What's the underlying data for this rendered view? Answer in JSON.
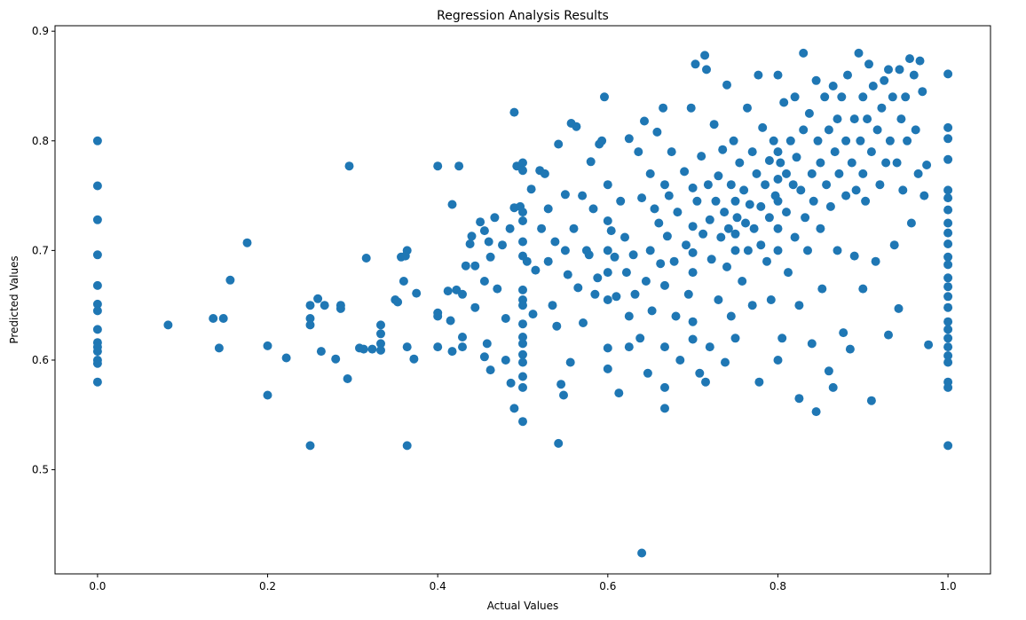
{
  "chart_data": {
    "type": "scatter",
    "title": "Regression Analysis Results",
    "xlabel": "Actual Values",
    "ylabel": "Predicted Values",
    "xlim": [
      -0.05,
      1.05
    ],
    "ylim": [
      0.405,
      0.905
    ],
    "x_ticks": [
      0.0,
      0.2,
      0.4,
      0.6,
      0.8,
      1.0
    ],
    "x_tick_labels": [
      "0.0",
      "0.2",
      "0.4",
      "0.6",
      "0.8",
      "1.0"
    ],
    "y_ticks": [
      0.5,
      0.6,
      0.7,
      0.8,
      0.9
    ],
    "y_tick_labels": [
      "0.5",
      "0.6",
      "0.7",
      "0.8",
      "0.9"
    ],
    "grid": false,
    "marker_color": "#1f77b4",
    "points": [
      [
        0.0,
        0.8
      ],
      [
        0.0,
        0.759
      ],
      [
        0.0,
        0.728
      ],
      [
        0.0,
        0.696
      ],
      [
        0.0,
        0.668
      ],
      [
        0.0,
        0.651
      ],
      [
        0.0,
        0.645
      ],
      [
        0.0,
        0.628
      ],
      [
        0.0,
        0.616
      ],
      [
        0.0,
        0.612
      ],
      [
        0.0,
        0.608
      ],
      [
        0.0,
        0.6
      ],
      [
        0.0,
        0.597
      ],
      [
        0.0,
        0.58
      ],
      [
        0.083,
        0.632
      ],
      [
        0.136,
        0.638
      ],
      [
        0.143,
        0.611
      ],
      [
        0.148,
        0.638
      ],
      [
        0.156,
        0.673
      ],
      [
        0.176,
        0.707
      ],
      [
        0.2,
        0.613
      ],
      [
        0.2,
        0.568
      ],
      [
        0.222,
        0.602
      ],
      [
        0.25,
        0.65
      ],
      [
        0.25,
        0.638
      ],
      [
        0.25,
        0.632
      ],
      [
        0.25,
        0.522
      ],
      [
        0.259,
        0.656
      ],
      [
        0.263,
        0.608
      ],
      [
        0.267,
        0.65
      ],
      [
        0.28,
        0.601
      ],
      [
        0.286,
        0.65
      ],
      [
        0.286,
        0.647
      ],
      [
        0.294,
        0.583
      ],
      [
        0.296,
        0.777
      ],
      [
        0.308,
        0.611
      ],
      [
        0.313,
        0.61
      ],
      [
        0.316,
        0.693
      ],
      [
        0.323,
        0.61
      ],
      [
        0.333,
        0.632
      ],
      [
        0.333,
        0.624
      ],
      [
        0.333,
        0.615
      ],
      [
        0.333,
        0.609
      ],
      [
        0.35,
        0.655
      ],
      [
        0.353,
        0.653
      ],
      [
        0.357,
        0.694
      ],
      [
        0.36,
        0.672
      ],
      [
        0.362,
        0.695
      ],
      [
        0.364,
        0.7
      ],
      [
        0.364,
        0.612
      ],
      [
        0.364,
        0.522
      ],
      [
        0.372,
        0.601
      ],
      [
        0.375,
        0.661
      ],
      [
        0.4,
        0.777
      ],
      [
        0.4,
        0.643
      ],
      [
        0.4,
        0.64
      ],
      [
        0.4,
        0.612
      ],
      [
        0.412,
        0.663
      ],
      [
        0.415,
        0.636
      ],
      [
        0.417,
        0.742
      ],
      [
        0.417,
        0.608
      ],
      [
        0.422,
        0.664
      ],
      [
        0.425,
        0.777
      ],
      [
        0.429,
        0.66
      ],
      [
        0.429,
        0.621
      ],
      [
        0.429,
        0.612
      ],
      [
        0.433,
        0.686
      ],
      [
        0.438,
        0.706
      ],
      [
        0.44,
        0.713
      ],
      [
        0.444,
        0.686
      ],
      [
        0.444,
        0.648
      ],
      [
        0.45,
        0.726
      ],
      [
        0.455,
        0.718
      ],
      [
        0.455,
        0.672
      ],
      [
        0.455,
        0.603
      ],
      [
        0.458,
        0.615
      ],
      [
        0.46,
        0.708
      ],
      [
        0.462,
        0.694
      ],
      [
        0.462,
        0.591
      ],
      [
        0.467,
        0.73
      ],
      [
        0.47,
        0.665
      ],
      [
        0.476,
        0.705
      ],
      [
        0.48,
        0.638
      ],
      [
        0.48,
        0.6
      ],
      [
        0.485,
        0.72
      ],
      [
        0.486,
        0.579
      ],
      [
        0.49,
        0.739
      ],
      [
        0.49,
        0.826
      ],
      [
        0.49,
        0.556
      ],
      [
        0.493,
        0.777
      ],
      [
        0.497,
        0.74
      ],
      [
        0.5,
        0.78
      ],
      [
        0.5,
        0.773
      ],
      [
        0.5,
        0.735
      ],
      [
        0.5,
        0.727
      ],
      [
        0.5,
        0.708
      ],
      [
        0.5,
        0.695
      ],
      [
        0.5,
        0.664
      ],
      [
        0.5,
        0.655
      ],
      [
        0.5,
        0.65
      ],
      [
        0.5,
        0.633
      ],
      [
        0.5,
        0.621
      ],
      [
        0.5,
        0.615
      ],
      [
        0.5,
        0.605
      ],
      [
        0.5,
        0.598
      ],
      [
        0.5,
        0.585
      ],
      [
        0.5,
        0.575
      ],
      [
        0.5,
        0.544
      ],
      [
        0.505,
        0.69
      ],
      [
        0.51,
        0.756
      ],
      [
        0.512,
        0.642
      ],
      [
        0.515,
        0.682
      ],
      [
        0.52,
        0.773
      ],
      [
        0.522,
        0.72
      ],
      [
        0.526,
        0.77
      ],
      [
        0.53,
        0.69
      ],
      [
        0.53,
        0.738
      ],
      [
        0.535,
        0.65
      ],
      [
        0.538,
        0.708
      ],
      [
        0.54,
        0.631
      ],
      [
        0.542,
        0.797
      ],
      [
        0.542,
        0.524
      ],
      [
        0.545,
        0.578
      ],
      [
        0.548,
        0.568
      ],
      [
        0.55,
        0.751
      ],
      [
        0.55,
        0.7
      ],
      [
        0.553,
        0.678
      ],
      [
        0.556,
        0.598
      ],
      [
        0.557,
        0.816
      ],
      [
        0.56,
        0.72
      ],
      [
        0.563,
        0.813
      ],
      [
        0.565,
        0.666
      ],
      [
        0.57,
        0.75
      ],
      [
        0.571,
        0.634
      ],
      [
        0.575,
        0.7
      ],
      [
        0.578,
        0.696
      ],
      [
        0.58,
        0.781
      ],
      [
        0.583,
        0.738
      ],
      [
        0.585,
        0.66
      ],
      [
        0.588,
        0.675
      ],
      [
        0.59,
        0.797
      ],
      [
        0.593,
        0.8
      ],
      [
        0.596,
        0.84
      ],
      [
        0.6,
        0.76
      ],
      [
        0.6,
        0.727
      ],
      [
        0.6,
        0.7
      ],
      [
        0.6,
        0.68
      ],
      [
        0.6,
        0.655
      ],
      [
        0.6,
        0.611
      ],
      [
        0.6,
        0.592
      ],
      [
        0.604,
        0.718
      ],
      [
        0.608,
        0.694
      ],
      [
        0.61,
        0.658
      ],
      [
        0.613,
        0.57
      ],
      [
        0.615,
        0.745
      ],
      [
        0.62,
        0.712
      ],
      [
        0.622,
        0.68
      ],
      [
        0.625,
        0.802
      ],
      [
        0.625,
        0.64
      ],
      [
        0.625,
        0.612
      ],
      [
        0.63,
        0.696
      ],
      [
        0.632,
        0.66
      ],
      [
        0.636,
        0.79
      ],
      [
        0.638,
        0.62
      ],
      [
        0.64,
        0.748
      ],
      [
        0.64,
        0.424
      ],
      [
        0.643,
        0.818
      ],
      [
        0.645,
        0.672
      ],
      [
        0.647,
        0.588
      ],
      [
        0.65,
        0.77
      ],
      [
        0.65,
        0.7
      ],
      [
        0.652,
        0.645
      ],
      [
        0.655,
        0.738
      ],
      [
        0.658,
        0.808
      ],
      [
        0.66,
        0.725
      ],
      [
        0.662,
        0.688
      ],
      [
        0.665,
        0.83
      ],
      [
        0.667,
        0.76
      ],
      [
        0.667,
        0.668
      ],
      [
        0.667,
        0.612
      ],
      [
        0.667,
        0.575
      ],
      [
        0.667,
        0.556
      ],
      [
        0.67,
        0.713
      ],
      [
        0.672,
        0.75
      ],
      [
        0.675,
        0.79
      ],
      [
        0.678,
        0.69
      ],
      [
        0.68,
        0.64
      ],
      [
        0.682,
        0.735
      ],
      [
        0.685,
        0.6
      ],
      [
        0.69,
        0.772
      ],
      [
        0.692,
        0.705
      ],
      [
        0.695,
        0.66
      ],
      [
        0.698,
        0.83
      ],
      [
        0.7,
        0.757
      ],
      [
        0.7,
        0.722
      ],
      [
        0.7,
        0.698
      ],
      [
        0.7,
        0.68
      ],
      [
        0.7,
        0.635
      ],
      [
        0.7,
        0.619
      ],
      [
        0.703,
        0.87
      ],
      [
        0.705,
        0.745
      ],
      [
        0.708,
        0.588
      ],
      [
        0.71,
        0.786
      ],
      [
        0.712,
        0.715
      ],
      [
        0.714,
        0.878
      ],
      [
        0.715,
        0.58
      ],
      [
        0.716,
        0.865
      ],
      [
        0.718,
        0.76
      ],
      [
        0.72,
        0.728
      ],
      [
        0.72,
        0.612
      ],
      [
        0.722,
        0.692
      ],
      [
        0.725,
        0.815
      ],
      [
        0.727,
        0.745
      ],
      [
        0.73,
        0.768
      ],
      [
        0.73,
        0.655
      ],
      [
        0.733,
        0.712
      ],
      [
        0.735,
        0.792
      ],
      [
        0.737,
        0.735
      ],
      [
        0.738,
        0.598
      ],
      [
        0.74,
        0.851
      ],
      [
        0.74,
        0.685
      ],
      [
        0.742,
        0.72
      ],
      [
        0.745,
        0.76
      ],
      [
        0.745,
        0.64
      ],
      [
        0.748,
        0.8
      ],
      [
        0.75,
        0.745
      ],
      [
        0.75,
        0.715
      ],
      [
        0.75,
        0.7
      ],
      [
        0.75,
        0.62
      ],
      [
        0.752,
        0.73
      ],
      [
        0.755,
        0.78
      ],
      [
        0.758,
        0.672
      ],
      [
        0.76,
        0.755
      ],
      [
        0.762,
        0.725
      ],
      [
        0.764,
        0.83
      ],
      [
        0.765,
        0.7
      ],
      [
        0.767,
        0.742
      ],
      [
        0.77,
        0.79
      ],
      [
        0.77,
        0.65
      ],
      [
        0.772,
        0.72
      ],
      [
        0.775,
        0.77
      ],
      [
        0.777,
        0.86
      ],
      [
        0.778,
        0.58
      ],
      [
        0.78,
        0.74
      ],
      [
        0.78,
        0.705
      ],
      [
        0.782,
        0.812
      ],
      [
        0.785,
        0.76
      ],
      [
        0.787,
        0.69
      ],
      [
        0.79,
        0.782
      ],
      [
        0.79,
        0.73
      ],
      [
        0.792,
        0.655
      ],
      [
        0.795,
        0.8
      ],
      [
        0.797,
        0.75
      ],
      [
        0.8,
        0.86
      ],
      [
        0.8,
        0.79
      ],
      [
        0.8,
        0.765
      ],
      [
        0.8,
        0.745
      ],
      [
        0.8,
        0.72
      ],
      [
        0.8,
        0.7
      ],
      [
        0.8,
        0.6
      ],
      [
        0.803,
        0.78
      ],
      [
        0.805,
        0.62
      ],
      [
        0.807,
        0.835
      ],
      [
        0.81,
        0.77
      ],
      [
        0.81,
        0.735
      ],
      [
        0.812,
        0.68
      ],
      [
        0.815,
        0.8
      ],
      [
        0.818,
        0.76
      ],
      [
        0.82,
        0.84
      ],
      [
        0.82,
        0.712
      ],
      [
        0.822,
        0.785
      ],
      [
        0.825,
        0.565
      ],
      [
        0.825,
        0.65
      ],
      [
        0.827,
        0.755
      ],
      [
        0.83,
        0.88
      ],
      [
        0.83,
        0.81
      ],
      [
        0.832,
        0.73
      ],
      [
        0.835,
        0.7
      ],
      [
        0.837,
        0.825
      ],
      [
        0.84,
        0.77
      ],
      [
        0.84,
        0.615
      ],
      [
        0.842,
        0.745
      ],
      [
        0.845,
        0.553
      ],
      [
        0.845,
        0.855
      ],
      [
        0.847,
        0.8
      ],
      [
        0.85,
        0.78
      ],
      [
        0.85,
        0.72
      ],
      [
        0.852,
        0.665
      ],
      [
        0.855,
        0.84
      ],
      [
        0.857,
        0.76
      ],
      [
        0.86,
        0.81
      ],
      [
        0.86,
        0.59
      ],
      [
        0.862,
        0.74
      ],
      [
        0.865,
        0.575
      ],
      [
        0.865,
        0.85
      ],
      [
        0.867,
        0.79
      ],
      [
        0.87,
        0.82
      ],
      [
        0.87,
        0.7
      ],
      [
        0.872,
        0.77
      ],
      [
        0.875,
        0.84
      ],
      [
        0.877,
        0.625
      ],
      [
        0.88,
        0.8
      ],
      [
        0.88,
        0.75
      ],
      [
        0.882,
        0.86
      ],
      [
        0.885,
        0.61
      ],
      [
        0.887,
        0.78
      ],
      [
        0.89,
        0.82
      ],
      [
        0.89,
        0.695
      ],
      [
        0.892,
        0.755
      ],
      [
        0.895,
        0.88
      ],
      [
        0.897,
        0.8
      ],
      [
        0.9,
        0.84
      ],
      [
        0.9,
        0.77
      ],
      [
        0.9,
        0.665
      ],
      [
        0.903,
        0.745
      ],
      [
        0.905,
        0.82
      ],
      [
        0.907,
        0.87
      ],
      [
        0.91,
        0.563
      ],
      [
        0.91,
        0.79
      ],
      [
        0.912,
        0.85
      ],
      [
        0.915,
        0.69
      ],
      [
        0.917,
        0.81
      ],
      [
        0.92,
        0.76
      ],
      [
        0.922,
        0.83
      ],
      [
        0.925,
        0.855
      ],
      [
        0.927,
        0.78
      ],
      [
        0.93,
        0.623
      ],
      [
        0.93,
        0.865
      ],
      [
        0.932,
        0.8
      ],
      [
        0.935,
        0.84
      ],
      [
        0.937,
        0.705
      ],
      [
        0.94,
        0.78
      ],
      [
        0.942,
        0.647
      ],
      [
        0.943,
        0.865
      ],
      [
        0.945,
        0.82
      ],
      [
        0.947,
        0.755
      ],
      [
        0.95,
        0.84
      ],
      [
        0.952,
        0.8
      ],
      [
        0.955,
        0.875
      ],
      [
        0.957,
        0.725
      ],
      [
        0.96,
        0.86
      ],
      [
        0.962,
        0.81
      ],
      [
        0.965,
        0.77
      ],
      [
        0.967,
        0.873
      ],
      [
        0.97,
        0.845
      ],
      [
        0.972,
        0.75
      ],
      [
        0.975,
        0.778
      ],
      [
        0.977,
        0.614
      ],
      [
        1.0,
        0.861
      ],
      [
        1.0,
        0.812
      ],
      [
        1.0,
        0.802
      ],
      [
        1.0,
        0.783
      ],
      [
        1.0,
        0.755
      ],
      [
        1.0,
        0.748
      ],
      [
        1.0,
        0.737
      ],
      [
        1.0,
        0.725
      ],
      [
        1.0,
        0.716
      ],
      [
        1.0,
        0.706
      ],
      [
        1.0,
        0.694
      ],
      [
        1.0,
        0.687
      ],
      [
        1.0,
        0.675
      ],
      [
        1.0,
        0.667
      ],
      [
        1.0,
        0.658
      ],
      [
        1.0,
        0.648
      ],
      [
        1.0,
        0.635
      ],
      [
        1.0,
        0.628
      ],
      [
        1.0,
        0.62
      ],
      [
        1.0,
        0.612
      ],
      [
        1.0,
        0.604
      ],
      [
        1.0,
        0.598
      ],
      [
        1.0,
        0.58
      ],
      [
        1.0,
        0.575
      ],
      [
        1.0,
        0.522
      ]
    ]
  }
}
